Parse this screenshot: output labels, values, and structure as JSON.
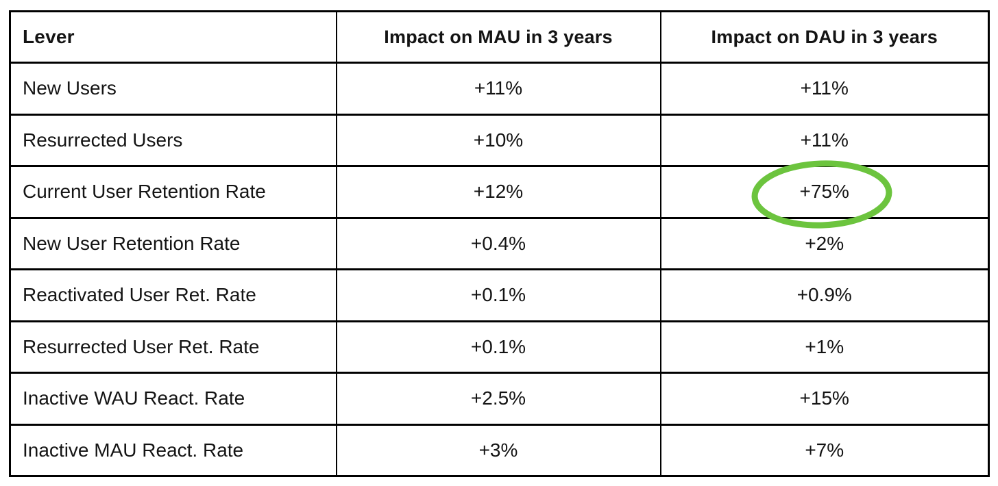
{
  "chart_data": {
    "type": "table",
    "title": "",
    "columns": [
      "Lever",
      "Impact on MAU in 3 years",
      "Impact on DAU in 3 years"
    ],
    "rows": [
      {
        "lever": "New Users",
        "mau": "+11%",
        "dau": "+11%"
      },
      {
        "lever": "Resurrected Users",
        "mau": "+10%",
        "dau": "+11%"
      },
      {
        "lever": "Current User Retention Rate",
        "mau": "+12%",
        "dau": "+75%"
      },
      {
        "lever": "New User Retention Rate",
        "mau": "+0.4%",
        "dau": "+2%"
      },
      {
        "lever": "Reactivated User Ret. Rate",
        "mau": "+0.1%",
        "dau": "+0.9%"
      },
      {
        "lever": "Resurrected User Ret. Rate",
        "mau": "+0.1%",
        "dau": "+1%"
      },
      {
        "lever": "Inactive WAU React. Rate",
        "mau": "+2.5%",
        "dau": "+15%"
      },
      {
        "lever": "Inactive MAU React. Rate",
        "mau": "+3%",
        "dau": "+7%"
      }
    ],
    "layout_hints": {
      "header_style": "bold",
      "lever_column_align": "left",
      "value_columns_align": "center",
      "grid": "on"
    }
  },
  "annotation": {
    "circled_value": "+75%",
    "circled_row": "Current User Retention Rate",
    "circled_column": "Impact on DAU in 3 years",
    "circle_color": "#6cc43e"
  },
  "colors": {
    "background": "#ffffff",
    "border": "#000000",
    "text": "#141414"
  }
}
